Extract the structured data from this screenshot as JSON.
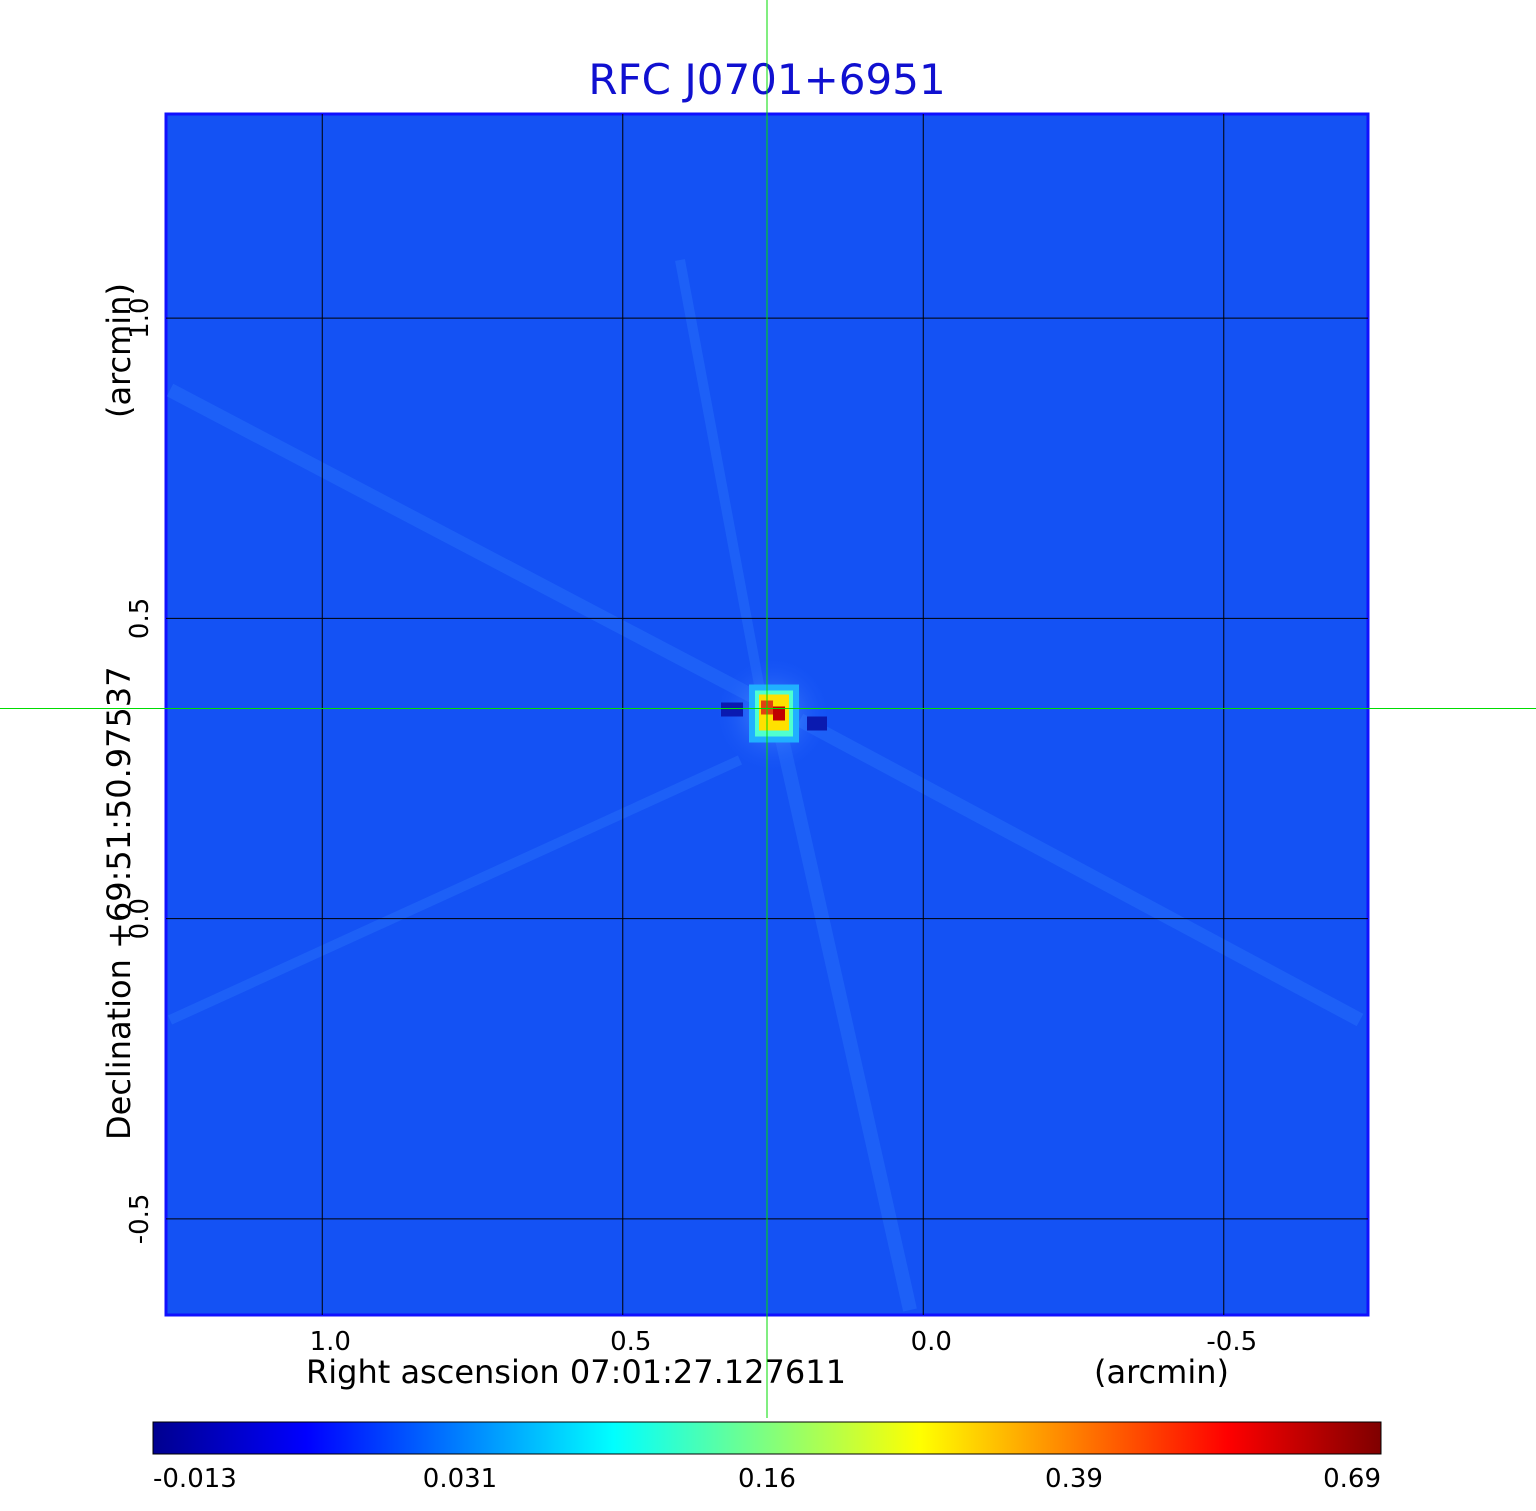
{
  "chart_data": {
    "type": "heatmap",
    "title": "RFC J0701+6951",
    "xlabel": {
      "text": "Right ascension  07:01:27.127611",
      "unit": "(arcmin)"
    },
    "ylabel": {
      "text": "Declination  +69:51:50.97537",
      "unit": "(arcmin)"
    },
    "x_ticks": [
      {
        "value": 1.0,
        "label": "1.0"
      },
      {
        "value": 0.5,
        "label": "0.5"
      },
      {
        "value": 0.0,
        "label": "0.0"
      },
      {
        "value": -0.5,
        "label": "-0.5"
      }
    ],
    "y_ticks": [
      {
        "value": 1.0,
        "label": "1.0"
      },
      {
        "value": 0.5,
        "label": "0.5"
      },
      {
        "value": 0.0,
        "label": "0.0"
      },
      {
        "value": -0.5,
        "label": "-0.5"
      }
    ],
    "xlim": [
      1.26,
      -0.74
    ],
    "ylim": [
      -0.66,
      1.34
    ],
    "grid": true,
    "crosshair": {
      "x": 0.26,
      "y": 0.35,
      "color": "#00dd00"
    },
    "source": {
      "x": 0.25,
      "y": 0.34,
      "peak": 0.69
    },
    "background_level": 0.0,
    "colorbar": {
      "ticks": [
        "-0.013",
        "0.031",
        "0.16",
        "0.39",
        "0.69"
      ],
      "colors": [
        "#00008f",
        "#0000ff",
        "#007fff",
        "#00ffff",
        "#7fff7f",
        "#ffff00",
        "#ff7f00",
        "#ff0000",
        "#7f0000"
      ]
    }
  }
}
